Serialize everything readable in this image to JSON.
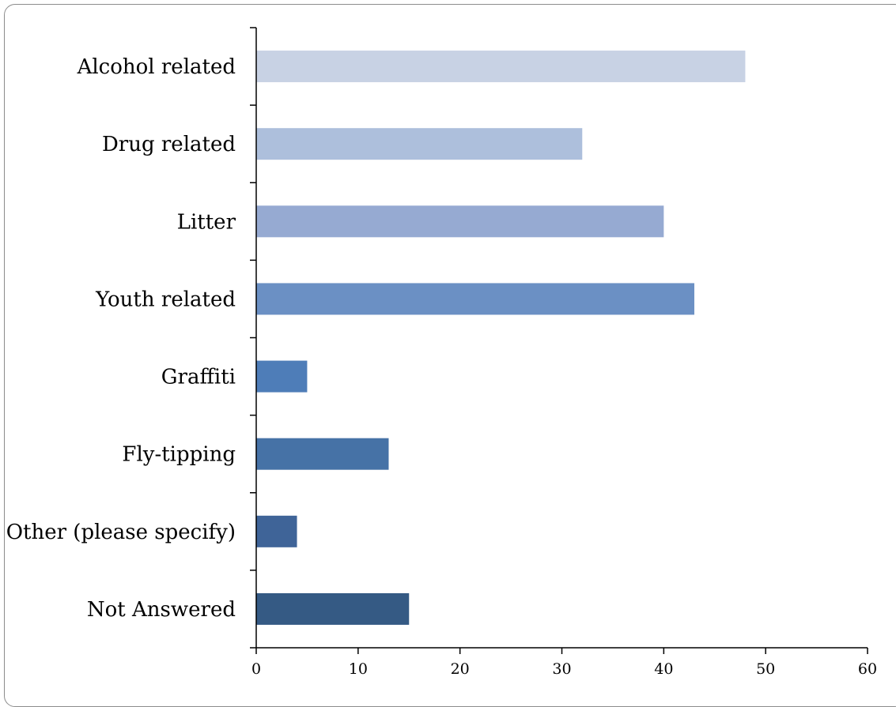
{
  "chart_data": {
    "type": "bar",
    "orientation": "horizontal",
    "categories": [
      "Alcohol related",
      "Drug related",
      "Litter",
      "Youth related",
      "Graffiti",
      "Fly-tipping",
      "Other (please specify)",
      "Not Answered"
    ],
    "values": [
      48,
      32,
      40,
      43,
      5,
      13,
      4,
      15
    ],
    "bar_colors": [
      "#c8d2e4",
      "#adbfdc",
      "#96aad2",
      "#6b90c4",
      "#4e7db8",
      "#4672a6",
      "#3f6498",
      "#355a84"
    ],
    "xlim": [
      0,
      60
    ],
    "x_ticks": [
      0,
      10,
      20,
      30,
      40,
      50,
      60
    ],
    "title": "",
    "xlabel": "",
    "ylabel": "",
    "grid": false,
    "legend": "none"
  }
}
